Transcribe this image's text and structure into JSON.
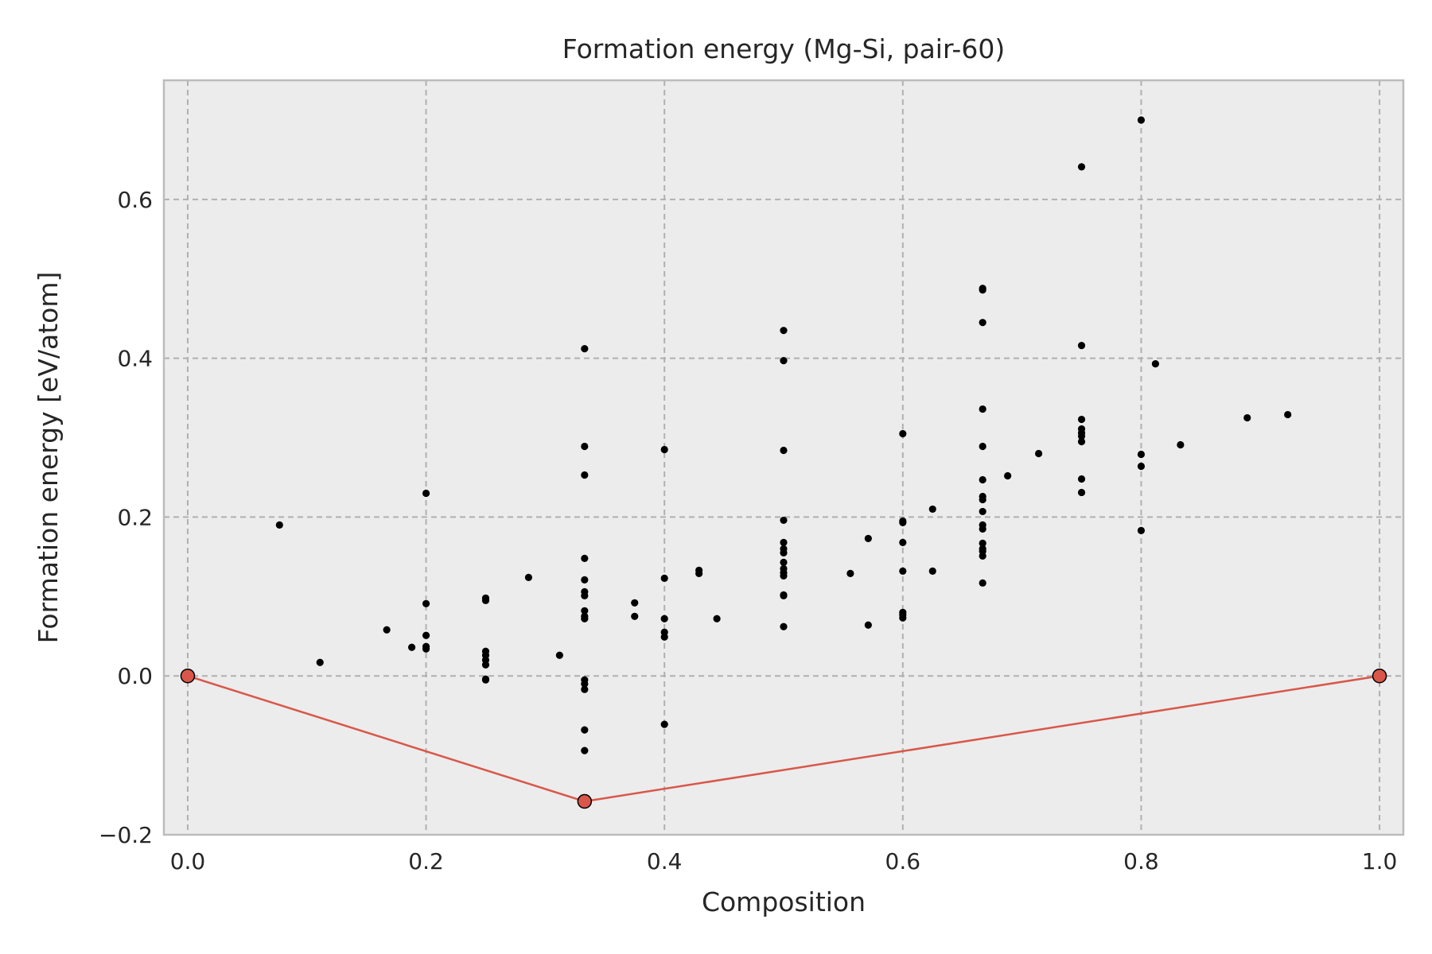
{
  "chart_data": {
    "type": "scatter",
    "title": "Formation energy (Mg-Si, pair-60)",
    "xlabel": "Composition",
    "ylabel": "Formation energy [eV/atom]",
    "xlim": [
      -0.02,
      1.02
    ],
    "ylim": [
      -0.2,
      0.75
    ],
    "xticks": [
      0.0,
      0.2,
      0.4,
      0.6,
      0.8,
      1.0
    ],
    "xtick_labels": [
      "0.0",
      "0.2",
      "0.4",
      "0.6",
      "0.8",
      "1.0"
    ],
    "yticks": [
      -0.2,
      0.0,
      0.2,
      0.4,
      0.6
    ],
    "ytick_labels": [
      "−0.2",
      "0.0",
      "0.2",
      "0.4",
      "0.6"
    ],
    "grid": true,
    "colors": {
      "background": "#ececec",
      "grid": "#b0b0b0",
      "points": "#000000",
      "hull": "#d9574a",
      "frame": "#bcbcbc"
    },
    "series": [
      {
        "kind": "scatter",
        "points": [
          [
            0.077,
            0.19
          ],
          [
            0.111,
            0.017
          ],
          [
            0.167,
            0.058
          ],
          [
            0.188,
            0.036
          ],
          [
            0.2,
            0.23
          ],
          [
            0.2,
            0.091
          ],
          [
            0.2,
            0.051
          ],
          [
            0.2,
            0.037
          ],
          [
            0.2,
            0.034
          ],
          [
            0.25,
            0.098
          ],
          [
            0.25,
            0.095
          ],
          [
            0.25,
            0.031
          ],
          [
            0.25,
            0.026
          ],
          [
            0.25,
            0.02
          ],
          [
            0.25,
            0.014
          ],
          [
            0.25,
            -0.004
          ],
          [
            0.25,
            -0.005
          ],
          [
            0.286,
            0.124
          ],
          [
            0.312,
            0.026
          ],
          [
            0.333,
            0.412
          ],
          [
            0.333,
            0.289
          ],
          [
            0.333,
            0.253
          ],
          [
            0.333,
            0.148
          ],
          [
            0.333,
            0.121
          ],
          [
            0.333,
            0.106
          ],
          [
            0.333,
            0.101
          ],
          [
            0.333,
            0.082
          ],
          [
            0.333,
            0.075
          ],
          [
            0.333,
            0.072
          ],
          [
            0.333,
            -0.005
          ],
          [
            0.333,
            -0.01
          ],
          [
            0.333,
            -0.017
          ],
          [
            0.333,
            -0.068
          ],
          [
            0.333,
            -0.094
          ],
          [
            0.375,
            0.092
          ],
          [
            0.375,
            0.075
          ],
          [
            0.4,
            0.285
          ],
          [
            0.4,
            0.123
          ],
          [
            0.4,
            0.072
          ],
          [
            0.4,
            0.055
          ],
          [
            0.4,
            0.049
          ],
          [
            0.4,
            -0.061
          ],
          [
            0.429,
            0.133
          ],
          [
            0.429,
            0.129
          ],
          [
            0.444,
            0.072
          ],
          [
            0.5,
            0.435
          ],
          [
            0.5,
            0.397
          ],
          [
            0.5,
            0.284
          ],
          [
            0.5,
            0.196
          ],
          [
            0.5,
            0.168
          ],
          [
            0.5,
            0.16
          ],
          [
            0.5,
            0.155
          ],
          [
            0.5,
            0.143
          ],
          [
            0.5,
            0.135
          ],
          [
            0.5,
            0.13
          ],
          [
            0.5,
            0.126
          ],
          [
            0.5,
            0.102
          ],
          [
            0.5,
            0.101
          ],
          [
            0.5,
            0.062
          ],
          [
            0.556,
            0.129
          ],
          [
            0.571,
            0.173
          ],
          [
            0.571,
            0.064
          ],
          [
            0.6,
            0.305
          ],
          [
            0.6,
            0.195
          ],
          [
            0.6,
            0.193
          ],
          [
            0.6,
            0.168
          ],
          [
            0.6,
            0.132
          ],
          [
            0.6,
            0.08
          ],
          [
            0.6,
            0.077
          ],
          [
            0.6,
            0.073
          ],
          [
            0.625,
            0.21
          ],
          [
            0.625,
            0.132
          ],
          [
            0.667,
            0.488
          ],
          [
            0.667,
            0.486
          ],
          [
            0.667,
            0.445
          ],
          [
            0.667,
            0.336
          ],
          [
            0.667,
            0.289
          ],
          [
            0.667,
            0.247
          ],
          [
            0.667,
            0.226
          ],
          [
            0.667,
            0.222
          ],
          [
            0.667,
            0.207
          ],
          [
            0.667,
            0.19
          ],
          [
            0.667,
            0.185
          ],
          [
            0.667,
            0.167
          ],
          [
            0.667,
            0.16
          ],
          [
            0.667,
            0.157
          ],
          [
            0.667,
            0.151
          ],
          [
            0.667,
            0.117
          ],
          [
            0.688,
            0.252
          ],
          [
            0.714,
            0.28
          ],
          [
            0.75,
            0.641
          ],
          [
            0.75,
            0.416
          ],
          [
            0.75,
            0.323
          ],
          [
            0.75,
            0.311
          ],
          [
            0.75,
            0.306
          ],
          [
            0.75,
            0.302
          ],
          [
            0.75,
            0.295
          ],
          [
            0.75,
            0.248
          ],
          [
            0.75,
            0.231
          ],
          [
            0.8,
            0.7
          ],
          [
            0.8,
            0.279
          ],
          [
            0.8,
            0.264
          ],
          [
            0.8,
            0.183
          ],
          [
            0.812,
            0.393
          ],
          [
            0.833,
            0.291
          ],
          [
            0.889,
            0.325
          ],
          [
            0.923,
            0.329
          ]
        ]
      },
      {
        "kind": "hull",
        "points": [
          [
            0.0,
            0.0
          ],
          [
            0.333,
            -0.158
          ],
          [
            1.0,
            0.0
          ]
        ]
      }
    ]
  }
}
